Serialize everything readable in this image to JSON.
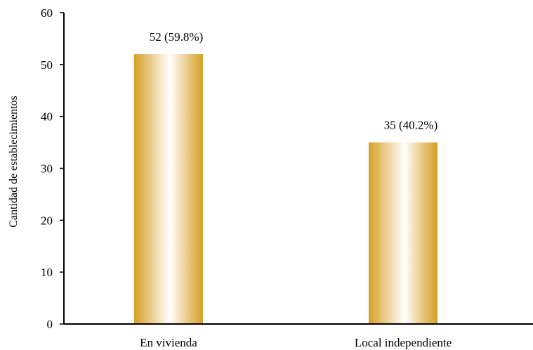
{
  "chart_data": {
    "type": "bar",
    "title": "",
    "xlabel": "",
    "ylabel": "Cantidad de establecimientos",
    "categories": [
      "En vivienda",
      "Local independiente"
    ],
    "values": [
      52,
      35
    ],
    "data_labels": [
      "52  (59.8%)",
      "35  (40.2%)"
    ],
    "ylim": [
      0,
      60
    ],
    "yticks": [
      0,
      10,
      20,
      30,
      40,
      50,
      60
    ],
    "ytick_labels": [
      "0",
      "10",
      "20",
      "30",
      "40",
      "50",
      "60"
    ],
    "grid": false,
    "legend": "none",
    "colors": {
      "bar_edge": "#D4A024",
      "bar_center": "#FFFFFF",
      "axis": "#000000"
    }
  }
}
